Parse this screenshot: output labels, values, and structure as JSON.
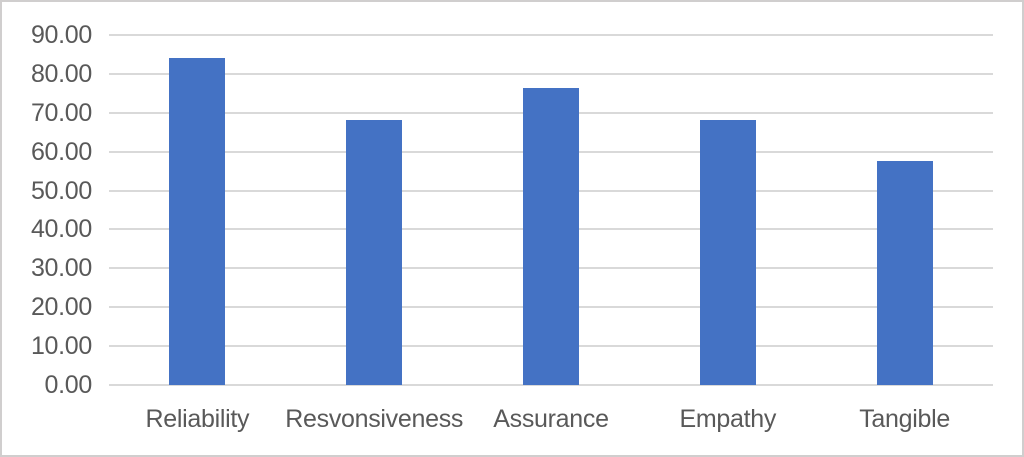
{
  "chart_data": {
    "type": "bar",
    "title": "",
    "xlabel": "",
    "ylabel": "",
    "categories": [
      "Reliability",
      "Resvonsiveness",
      "Assurance",
      "Empathy",
      "Tangible"
    ],
    "values": [
      84.0,
      68.2,
      76.3,
      68.2,
      57.5
    ],
    "ylim": [
      0,
      90
    ],
    "y_tick_step": 10,
    "y_tick_labels": [
      "0.00",
      "10.00",
      "20.00",
      "30.00",
      "40.00",
      "50.00",
      "60.00",
      "70.00",
      "80.00",
      "90.00"
    ],
    "grid": true,
    "legend": false,
    "bar_color": "#4472c4",
    "gridline_color": "#d9d9d9",
    "axis_line_color": "#d9d9d9",
    "axis_text_color": "#595959",
    "border_color": "#d0cece",
    "background_color": "#ffffff"
  }
}
